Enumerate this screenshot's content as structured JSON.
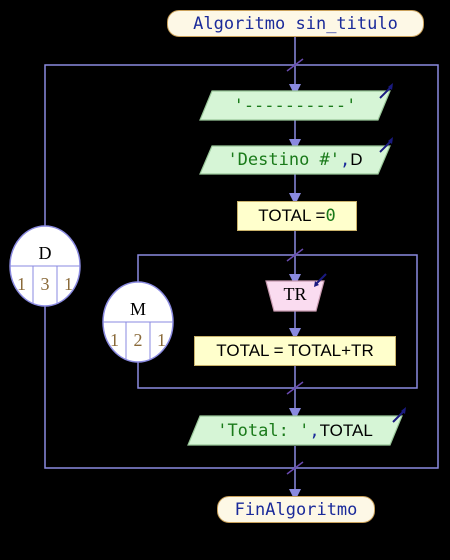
{
  "diagram": {
    "start_label": "Algoritmo sin_titulo",
    "end_label": "FinAlgoritmo",
    "write1": {
      "text": "'----------'"
    },
    "write2": {
      "str": "'Destino #'",
      "sep": ",",
      "var": "D"
    },
    "assign1": {
      "lhs": "TOTAL = ",
      "rhs": "0"
    },
    "read1": {
      "var": "TR"
    },
    "assign2": {
      "text": "TOTAL = TOTAL+TR"
    },
    "write3": {
      "str": "'Total: '",
      "sep": ",",
      "var": "TOTAL"
    },
    "outer_loop": {
      "var": "D",
      "from": "1",
      "to": "3",
      "step": "1"
    },
    "inner_loop": {
      "var": "M",
      "from": "1",
      "to": "2",
      "step": "1"
    }
  },
  "colors": {
    "flow_line": "#8a8ae0",
    "write_fill": "#d6f5d6",
    "read_fill": "#fadcf0",
    "loop_fill": "#ffffff",
    "arrow_dark": "#1a1a80",
    "break_mark": "#6a4ab0"
  }
}
